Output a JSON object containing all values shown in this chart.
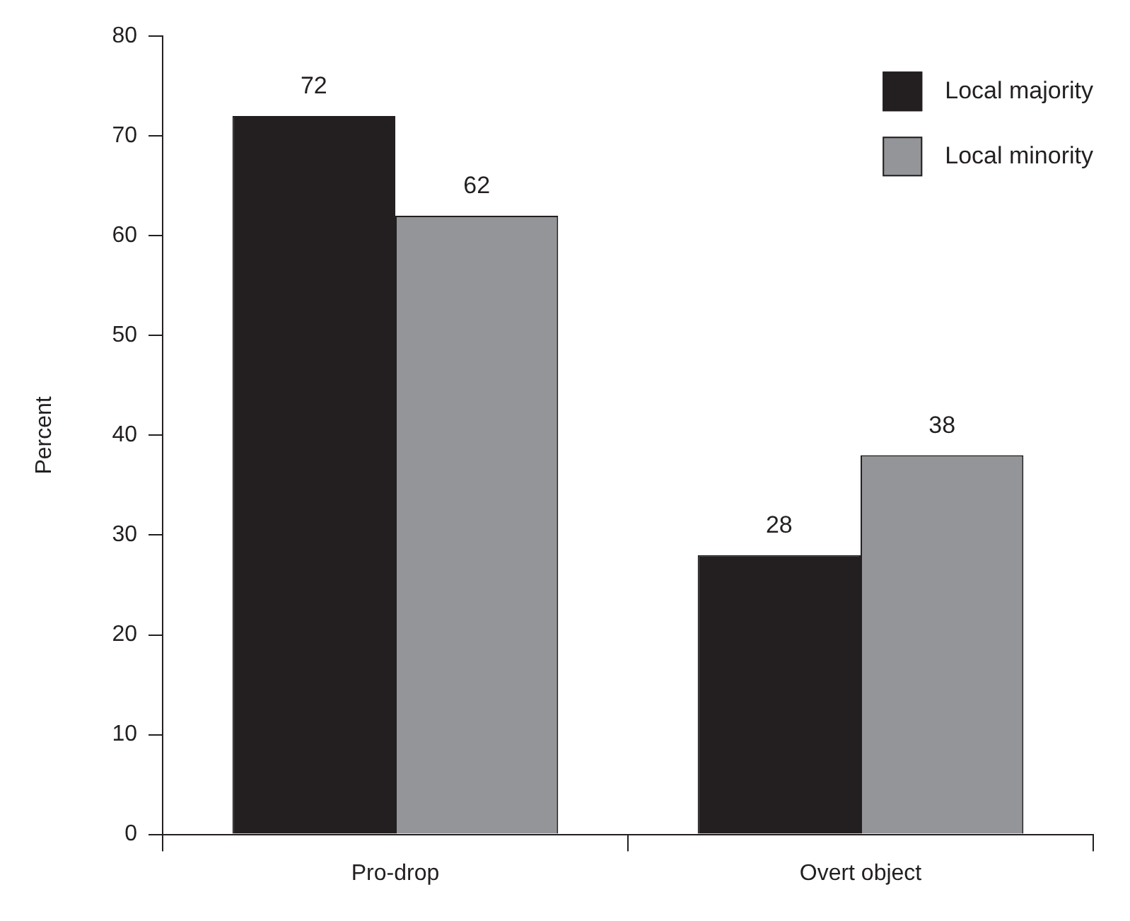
{
  "chart_data": {
    "type": "bar",
    "ylabel": "Percent",
    "categories": [
      "Pro-drop",
      "Overt object"
    ],
    "series": [
      {
        "name": "Local majority",
        "color": "#231f20",
        "values": [
          72,
          28
        ]
      },
      {
        "name": "Local minority",
        "color": "#939598",
        "values": [
          62,
          38
        ]
      }
    ],
    "ylim": [
      0,
      80
    ],
    "yticks": [
      0,
      10,
      20,
      30,
      40,
      50,
      60,
      70,
      80
    ],
    "grid": false,
    "legend": "top right",
    "data_labels": true
  }
}
